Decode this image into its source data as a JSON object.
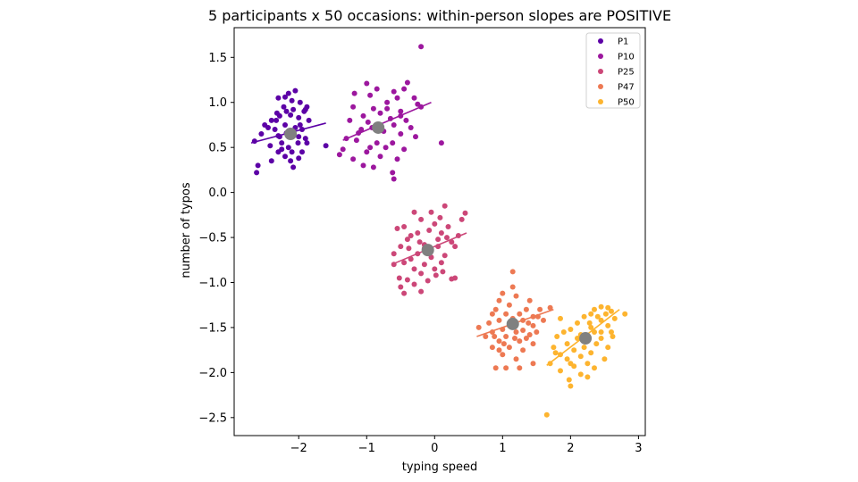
{
  "chart_data": {
    "type": "scatter",
    "title": "5 participants x 50 occasions: within-person slopes are POSITIVE",
    "xlabel": "typing speed",
    "ylabel": "number of typos",
    "xlim": [
      -2.95,
      3.1
    ],
    "ylim": [
      -2.7,
      1.83
    ],
    "xticks": [
      {
        "value": -2,
        "label": "−2"
      },
      {
        "value": -1,
        "label": "−1"
      },
      {
        "value": 0,
        "label": "0"
      },
      {
        "value": 1,
        "label": "1"
      },
      {
        "value": 2,
        "label": "2"
      },
      {
        "value": 3,
        "label": "3"
      }
    ],
    "yticks": [
      {
        "value": 1.5,
        "label": "1.5"
      },
      {
        "value": 1.0,
        "label": "1.0"
      },
      {
        "value": 0.5,
        "label": "0.5"
      },
      {
        "value": 0.0,
        "label": "0.0"
      },
      {
        "value": -0.5,
        "label": "−0.5"
      },
      {
        "value": -1.0,
        "label": "−1.0"
      },
      {
        "value": -1.5,
        "label": "−1.5"
      },
      {
        "value": -2.0,
        "label": "−2.0"
      },
      {
        "value": -2.5,
        "label": "−2.5"
      }
    ],
    "grid": false,
    "legend_position": "top-right",
    "mean_marker_color": "#808080",
    "series": [
      {
        "name": "P1",
        "color": "#5c01a6",
        "mean": [
          -2.12,
          0.65
        ],
        "fit_line": {
          "x": [
            -2.7,
            -1.6
          ],
          "y": [
            0.55,
            0.77
          ]
        },
        "points": [
          [
            -2.05,
            1.13
          ],
          [
            -2.2,
            1.06
          ],
          [
            -2.3,
            1.05
          ],
          [
            -2.1,
            1.02
          ],
          [
            -1.98,
            1.0
          ],
          [
            -1.9,
            0.92
          ],
          [
            -1.88,
            0.95
          ],
          [
            -2.18,
            0.9
          ],
          [
            -2.08,
            0.92
          ],
          [
            -2.12,
            0.86
          ],
          [
            -2.28,
            0.85
          ],
          [
            -2.4,
            0.8
          ],
          [
            -2.0,
            0.83
          ],
          [
            -1.85,
            0.8
          ],
          [
            -2.5,
            0.75
          ],
          [
            -2.2,
            0.75
          ],
          [
            -2.05,
            0.72
          ],
          [
            -2.35,
            0.7
          ],
          [
            -1.95,
            0.7
          ],
          [
            -2.55,
            0.65
          ],
          [
            -2.3,
            0.63
          ],
          [
            -2.0,
            0.62
          ],
          [
            -2.65,
            0.57
          ],
          [
            -1.9,
            0.6
          ],
          [
            -1.88,
            0.55
          ],
          [
            -2.25,
            0.55
          ],
          [
            -1.6,
            0.52
          ],
          [
            -2.42,
            0.52
          ],
          [
            -2.15,
            0.5
          ],
          [
            -2.1,
            0.45
          ],
          [
            -1.95,
            0.45
          ],
          [
            -2.3,
            0.45
          ],
          [
            -2.2,
            0.4
          ],
          [
            -2.0,
            0.38
          ],
          [
            -2.12,
            0.35
          ],
          [
            -2.4,
            0.35
          ],
          [
            -2.08,
            0.28
          ],
          [
            -2.6,
            0.3
          ],
          [
            -2.62,
            0.22
          ],
          [
            -2.28,
            0.62
          ],
          [
            -2.45,
            0.72
          ],
          [
            -2.33,
            0.8
          ],
          [
            -2.18,
            0.66
          ],
          [
            -1.98,
            0.75
          ],
          [
            -1.92,
            0.9
          ],
          [
            -2.22,
            0.95
          ],
          [
            -2.15,
            1.1
          ],
          [
            -2.32,
            0.88
          ],
          [
            -2.01,
            0.55
          ],
          [
            -2.25,
            0.48
          ]
        ]
      },
      {
        "name": "P10",
        "color": "#9c179e",
        "mean": [
          -0.83,
          0.72
        ],
        "fit_line": {
          "x": [
            -1.35,
            -0.05
          ],
          "y": [
            0.58,
            1.0
          ]
        },
        "points": [
          [
            -0.2,
            1.62
          ],
          [
            -0.4,
            1.22
          ],
          [
            -0.45,
            1.15
          ],
          [
            -1.0,
            1.21
          ],
          [
            -0.85,
            1.15
          ],
          [
            -1.18,
            1.1
          ],
          [
            -0.95,
            1.08
          ],
          [
            -0.6,
            1.12
          ],
          [
            -0.55,
            1.05
          ],
          [
            -0.7,
            1.0
          ],
          [
            -0.3,
            1.05
          ],
          [
            -0.25,
            0.98
          ],
          [
            -1.2,
            0.95
          ],
          [
            -0.9,
            0.93
          ],
          [
            -0.5,
            0.9
          ],
          [
            -0.8,
            0.88
          ],
          [
            -1.05,
            0.85
          ],
          [
            -0.65,
            0.82
          ],
          [
            -1.25,
            0.8
          ],
          [
            -0.42,
            0.8
          ],
          [
            -0.6,
            0.75
          ],
          [
            -0.92,
            0.72
          ],
          [
            -1.08,
            0.7
          ],
          [
            -0.75,
            0.68
          ],
          [
            -0.5,
            0.65
          ],
          [
            -1.3,
            0.6
          ],
          [
            -1.15,
            0.58
          ],
          [
            -0.85,
            0.55
          ],
          [
            -0.62,
            0.55
          ],
          [
            -0.95,
            0.5
          ],
          [
            -1.35,
            0.48
          ],
          [
            -0.45,
            0.48
          ],
          [
            -0.2,
            0.95
          ],
          [
            -0.72,
            0.5
          ],
          [
            -1.0,
            0.45
          ],
          [
            -1.4,
            0.42
          ],
          [
            -0.8,
            0.4
          ],
          [
            -1.2,
            0.37
          ],
          [
            -0.55,
            0.37
          ],
          [
            -1.05,
            0.3
          ],
          [
            -0.9,
            0.28
          ],
          [
            -0.62,
            0.22
          ],
          [
            -0.6,
            0.15
          ],
          [
            0.1,
            0.55
          ],
          [
            -0.28,
            0.62
          ],
          [
            -0.35,
            0.72
          ],
          [
            -0.7,
            0.93
          ],
          [
            -1.12,
            0.66
          ],
          [
            -0.98,
            0.78
          ],
          [
            -0.5,
            0.85
          ]
        ]
      },
      {
        "name": "P25",
        "color": "#cc4778",
        "mean": [
          -0.1,
          -0.64
        ],
        "fit_line": {
          "x": [
            -0.6,
            0.47
          ],
          "y": [
            -0.79,
            -0.45
          ]
        },
        "points": [
          [
            0.15,
            -0.15
          ],
          [
            -0.05,
            -0.22
          ],
          [
            -0.3,
            -0.22
          ],
          [
            0.08,
            -0.28
          ],
          [
            -0.2,
            -0.3
          ],
          [
            0.45,
            -0.23
          ],
          [
            0.0,
            -0.35
          ],
          [
            -0.45,
            -0.38
          ],
          [
            -0.55,
            -0.4
          ],
          [
            0.2,
            -0.38
          ],
          [
            -0.25,
            -0.45
          ],
          [
            0.1,
            -0.45
          ],
          [
            -0.35,
            -0.48
          ],
          [
            0.35,
            -0.48
          ],
          [
            -0.4,
            -0.52
          ],
          [
            0.05,
            -0.52
          ],
          [
            0.25,
            -0.55
          ],
          [
            -0.15,
            -0.58
          ],
          [
            -0.5,
            -0.6
          ],
          [
            0.3,
            -0.6
          ],
          [
            -0.6,
            -0.68
          ],
          [
            -0.25,
            -0.68
          ],
          [
            0.15,
            -0.7
          ],
          [
            -0.05,
            -0.72
          ],
          [
            -0.35,
            -0.74
          ],
          [
            -0.45,
            -0.78
          ],
          [
            0.1,
            -0.78
          ],
          [
            -0.15,
            -0.8
          ],
          [
            -0.6,
            -0.8
          ],
          [
            0.0,
            -0.85
          ],
          [
            -0.3,
            -0.85
          ],
          [
            -0.2,
            -0.9
          ],
          [
            0.02,
            -0.92
          ],
          [
            0.3,
            -0.95
          ],
          [
            -0.4,
            -0.97
          ],
          [
            0.25,
            -0.96
          ],
          [
            -0.1,
            -0.98
          ],
          [
            -0.3,
            -1.02
          ],
          [
            -0.5,
            -1.05
          ],
          [
            -0.2,
            -1.1
          ],
          [
            -0.45,
            -1.12
          ],
          [
            -0.15,
            -0.62
          ],
          [
            0.05,
            -0.6
          ],
          [
            -0.08,
            -0.42
          ],
          [
            0.4,
            -0.3
          ],
          [
            -0.52,
            -0.95
          ],
          [
            0.18,
            -0.5
          ],
          [
            -0.38,
            -0.62
          ],
          [
            -0.22,
            -0.55
          ],
          [
            0.12,
            -0.88
          ]
        ]
      },
      {
        "name": "P47",
        "color": "#ed7953",
        "mean": [
          1.15,
          -1.46
        ],
        "fit_line": {
          "x": [
            0.62,
            1.75
          ],
          "y": [
            -1.6,
            -1.3
          ]
        },
        "points": [
          [
            1.15,
            -0.88
          ],
          [
            1.15,
            -1.05
          ],
          [
            1.0,
            -1.12
          ],
          [
            1.2,
            -1.15
          ],
          [
            0.95,
            -1.2
          ],
          [
            1.4,
            -1.2
          ],
          [
            1.1,
            -1.25
          ],
          [
            1.35,
            -1.3
          ],
          [
            1.55,
            -1.3
          ],
          [
            1.7,
            -1.28
          ],
          [
            0.85,
            -1.35
          ],
          [
            1.05,
            -1.35
          ],
          [
            1.25,
            -1.35
          ],
          [
            1.45,
            -1.38
          ],
          [
            0.95,
            -1.42
          ],
          [
            1.3,
            -1.42
          ],
          [
            1.6,
            -1.42
          ],
          [
            0.8,
            -1.45
          ],
          [
            1.1,
            -1.48
          ],
          [
            1.45,
            -1.48
          ],
          [
            0.65,
            -1.5
          ],
          [
            1.0,
            -1.52
          ],
          [
            1.3,
            -1.53
          ],
          [
            0.85,
            -1.55
          ],
          [
            1.2,
            -1.55
          ],
          [
            1.5,
            -1.55
          ],
          [
            0.75,
            -1.6
          ],
          [
            1.05,
            -1.6
          ],
          [
            1.35,
            -1.62
          ],
          [
            0.95,
            -1.65
          ],
          [
            1.25,
            -1.65
          ],
          [
            1.45,
            -1.68
          ],
          [
            0.85,
            -1.72
          ],
          [
            1.1,
            -1.72
          ],
          [
            1.3,
            -1.75
          ],
          [
            1.0,
            -1.8
          ],
          [
            0.95,
            -1.75
          ],
          [
            1.2,
            -1.85
          ],
          [
            1.45,
            -1.9
          ],
          [
            1.05,
            -1.95
          ],
          [
            1.25,
            -1.95
          ],
          [
            0.9,
            -1.95
          ],
          [
            1.4,
            -1.58
          ],
          [
            1.15,
            -1.4
          ],
          [
            0.9,
            -1.3
          ],
          [
            1.38,
            -1.45
          ],
          [
            1.52,
            -1.38
          ],
          [
            1.18,
            -1.62
          ],
          [
            0.88,
            -1.6
          ],
          [
            1.02,
            -1.68
          ]
        ]
      },
      {
        "name": "P50",
        "color": "#fdb42f",
        "mean": [
          2.22,
          -1.62
        ],
        "fit_line": {
          "x": [
            1.65,
            2.72
          ],
          "y": [
            -1.92,
            -1.3
          ]
        },
        "points": [
          [
            2.45,
            -1.27
          ],
          [
            2.55,
            -1.28
          ],
          [
            2.35,
            -1.3
          ],
          [
            2.6,
            -1.32
          ],
          [
            2.8,
            -1.35
          ],
          [
            2.3,
            -1.35
          ],
          [
            2.2,
            -1.38
          ],
          [
            1.85,
            -1.4
          ],
          [
            2.45,
            -1.42
          ],
          [
            2.1,
            -1.45
          ],
          [
            2.55,
            -1.48
          ],
          [
            2.3,
            -1.5
          ],
          [
            2.0,
            -1.52
          ],
          [
            2.6,
            -1.55
          ],
          [
            2.35,
            -1.55
          ],
          [
            2.15,
            -1.58
          ],
          [
            1.8,
            -1.6
          ],
          [
            2.45,
            -1.62
          ],
          [
            2.25,
            -1.65
          ],
          [
            1.95,
            -1.68
          ],
          [
            2.55,
            -1.72
          ],
          [
            1.75,
            -1.72
          ],
          [
            2.05,
            -1.75
          ],
          [
            2.3,
            -1.78
          ],
          [
            1.85,
            -1.8
          ],
          [
            2.15,
            -1.82
          ],
          [
            2.5,
            -1.85
          ],
          [
            1.95,
            -1.85
          ],
          [
            2.25,
            -1.9
          ],
          [
            1.7,
            -1.9
          ],
          [
            2.05,
            -1.93
          ],
          [
            2.35,
            -1.95
          ],
          [
            1.85,
            -1.98
          ],
          [
            2.15,
            -2.02
          ],
          [
            2.25,
            -2.05
          ],
          [
            1.98,
            -2.08
          ],
          [
            2.0,
            -2.15
          ],
          [
            2.4,
            -1.38
          ],
          [
            1.65,
            -2.47
          ],
          [
            2.2,
            -1.72
          ],
          [
            2.45,
            -1.55
          ],
          [
            2.65,
            -1.4
          ],
          [
            2.1,
            -1.62
          ],
          [
            1.9,
            -1.55
          ],
          [
            2.38,
            -1.68
          ],
          [
            2.52,
            -1.35
          ],
          [
            2.28,
            -1.45
          ],
          [
            2.0,
            -1.9
          ],
          [
            2.62,
            -1.6
          ],
          [
            1.78,
            -1.78
          ]
        ]
      }
    ]
  }
}
